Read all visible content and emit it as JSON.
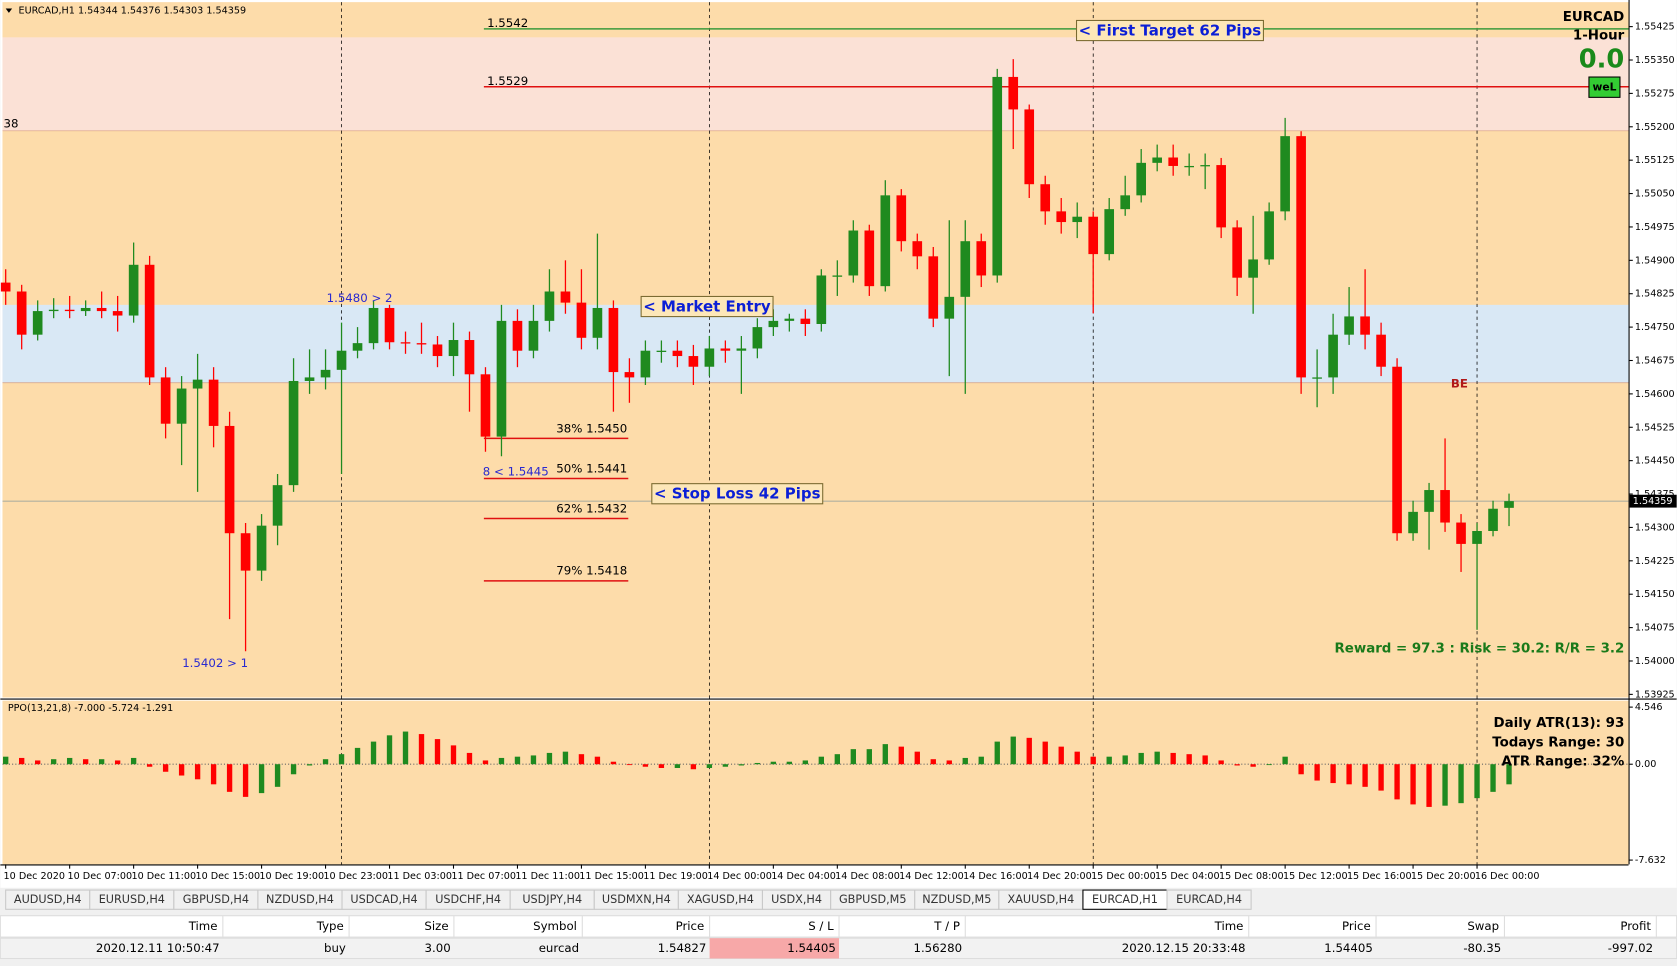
{
  "chart_data": [
    {
      "type": "candlestick",
      "header": "EURCAD,H1  1.54344 1.54376 1.54303 1.54359",
      "categories": [
        "10 Dec 2020",
        null,
        null,
        null,
        "10 Dec 07:00",
        null,
        null,
        null,
        "10 Dec 11:00",
        null,
        null,
        null,
        "10 Dec 15:00",
        null,
        null,
        null,
        "10 Dec 19:00",
        null,
        null,
        null,
        "10 Dec 23:00",
        null,
        null,
        null,
        "11 Dec 03:00",
        null,
        null,
        null,
        "11 Dec 07:00",
        null,
        null,
        null,
        "11 Dec 11:00",
        null,
        null,
        null,
        "11 Dec 15:00",
        null,
        null,
        null,
        "11 Dec 19:00",
        null,
        null,
        null,
        "14 Dec 00:00",
        null,
        null,
        null,
        "14 Dec 04:00",
        null,
        null,
        null,
        "14 Dec 08:00",
        null,
        null,
        null,
        "14 Dec 12:00",
        null,
        null,
        null,
        "14 Dec 16:00",
        null,
        null,
        null,
        "14 Dec 20:00",
        null,
        null,
        null,
        "15 Dec 00:00",
        null,
        null,
        null,
        "15 Dec 04:00",
        null,
        null,
        null,
        "15 Dec 08:00",
        null,
        null,
        null,
        "15 Dec 12:00",
        null,
        null,
        null,
        "15 Dec 16:00",
        null,
        null,
        null,
        "15 Dec 20:00",
        null,
        null,
        null,
        "16 Dec 00:00",
        null,
        null
      ],
      "open": [
        1.5485,
        1.5483,
        1.54733,
        1.54786,
        1.54789,
        1.54786,
        1.54793,
        1.54786,
        1.54776,
        1.5489,
        1.54637,
        1.54533,
        1.54612,
        1.54632,
        1.54528,
        1.54287,
        1.54203,
        1.54304,
        1.54395,
        1.54629,
        1.54637,
        1.54654,
        1.54697,
        1.54714,
        1.54793,
        1.54716,
        1.54714,
        1.54711,
        1.54685,
        1.54721,
        1.54644,
        1.54504,
        1.54764,
        1.54697,
        1.54764,
        1.5483,
        1.54805,
        1.54726,
        1.54793,
        1.54649,
        1.54637,
        1.54697,
        1.54697,
        1.54685,
        1.54661,
        1.54702,
        1.54697,
        1.54702,
        1.5475,
        1.54764,
        1.54769,
        1.54757,
        1.54866,
        1.54866,
        1.54967,
        1.54842,
        1.55046,
        1.54943,
        1.54909,
        1.54769,
        1.54818,
        1.54943,
        1.54866,
        1.55312,
        1.55239,
        1.55071,
        1.5501,
        1.54986,
        1.54998,
        1.54914,
        1.55015,
        1.55046,
        1.55119,
        1.55131,
        1.55112,
        1.55112,
        1.55114,
        1.54974,
        1.54861,
        1.54902,
        1.5501,
        1.55179,
        1.54637,
        1.54637,
        1.54733,
        1.54774,
        1.54733,
        1.54661,
        1.54287,
        1.54335,
        1.54384,
        1.54311,
        1.54263,
        1.54292,
        1.54344
      ],
      "high": [
        1.5488,
        1.54845,
        1.5481,
        1.54815,
        1.5482,
        1.5481,
        1.5483,
        1.5482,
        1.5494,
        1.5491,
        1.5466,
        1.5464,
        1.5469,
        1.5466,
        1.5456,
        1.5431,
        1.5433,
        1.5442,
        1.5468,
        1.547,
        1.547,
        1.5476,
        1.5475,
        1.5481,
        1.548,
        1.5474,
        1.5476,
        1.5473,
        1.5476,
        1.5474,
        1.5466,
        1.548,
        1.5479,
        1.548,
        1.5488,
        1.549,
        1.5488,
        1.5496,
        1.5481,
        1.5468,
        1.5472,
        1.5472,
        1.5472,
        1.5471,
        1.5473,
        1.5472,
        1.5473,
        1.5477,
        1.5479,
        1.5478,
        1.5479,
        1.5488,
        1.549,
        1.5499,
        1.5498,
        1.5508,
        1.5506,
        1.5496,
        1.5493,
        1.5499,
        1.5499,
        1.5496,
        1.5533,
        1.55352,
        1.5525,
        1.5509,
        1.5504,
        1.5503,
        1.5501,
        1.5504,
        1.5509,
        1.5515,
        1.5516,
        1.5516,
        1.5514,
        1.5514,
        1.5513,
        1.5499,
        1.55,
        1.5503,
        1.5522,
        1.5519,
        1.547,
        1.5478,
        1.5484,
        1.5488,
        1.5476,
        1.5468,
        1.5436,
        1.544,
        1.545,
        1.5433,
        1.5431,
        1.5436,
        1.54376
      ],
      "low": [
        1.548,
        1.547,
        1.5472,
        1.5477,
        1.5477,
        1.54775,
        1.5477,
        1.5474,
        1.5476,
        1.5462,
        1.545,
        1.5444,
        1.5438,
        1.5448,
        1.54094,
        1.54022,
        1.5418,
        1.5426,
        1.5438,
        1.546,
        1.5461,
        1.5442,
        1.5468,
        1.547,
        1.547,
        1.5469,
        1.5469,
        1.5466,
        1.5464,
        1.5456,
        1.5447,
        1.5446,
        1.5466,
        1.5468,
        1.5474,
        1.5478,
        1.547,
        1.547,
        1.5456,
        1.5458,
        1.5462,
        1.5467,
        1.5466,
        1.5462,
        1.5464,
        1.5467,
        1.546,
        1.5468,
        1.5473,
        1.5474,
        1.5473,
        1.5474,
        1.5482,
        1.5485,
        1.5482,
        1.5483,
        1.5492,
        1.5488,
        1.5475,
        1.5464,
        1.546,
        1.5484,
        1.5485,
        1.5515,
        1.5504,
        1.5498,
        1.5496,
        1.5495,
        1.54781,
        1.549,
        1.55,
        1.5503,
        1.551,
        1.5509,
        1.5509,
        1.5506,
        1.5495,
        1.5482,
        1.5478,
        1.5489,
        1.5499,
        1.546,
        1.5457,
        1.546,
        1.5471,
        1.547,
        1.5464,
        1.5427,
        1.5427,
        1.5425,
        1.5429,
        1.542,
        1.5407,
        1.5428,
        1.54303
      ],
      "close": [
        1.5483,
        1.54733,
        1.54786,
        1.54789,
        1.54786,
        1.54793,
        1.54786,
        1.54776,
        1.5489,
        1.54637,
        1.54533,
        1.54612,
        1.54632,
        1.54528,
        1.54287,
        1.54203,
        1.54304,
        1.54395,
        1.54629,
        1.54637,
        1.54654,
        1.54697,
        1.54714,
        1.54793,
        1.54716,
        1.54714,
        1.54711,
        1.54685,
        1.54721,
        1.54644,
        1.54504,
        1.54764,
        1.54697,
        1.54764,
        1.5483,
        1.54805,
        1.54726,
        1.54793,
        1.54649,
        1.54637,
        1.54697,
        1.54697,
        1.54685,
        1.54661,
        1.54702,
        1.54697,
        1.54702,
        1.5475,
        1.54764,
        1.54769,
        1.54757,
        1.54866,
        1.54866,
        1.54967,
        1.54842,
        1.55046,
        1.54943,
        1.54909,
        1.54769,
        1.54818,
        1.54943,
        1.54866,
        1.55312,
        1.55239,
        1.55071,
        1.5501,
        1.54986,
        1.54998,
        1.54914,
        1.55015,
        1.55046,
        1.55119,
        1.55131,
        1.55112,
        1.55112,
        1.55114,
        1.54974,
        1.54861,
        1.54902,
        1.5501,
        1.55179,
        1.54637,
        1.54637,
        1.54733,
        1.54774,
        1.54733,
        1.54661,
        1.54287,
        1.54335,
        1.54384,
        1.54311,
        1.54263,
        1.54292,
        1.54342,
        1.54359
      ],
      "up_color": "#1f8a1f",
      "down_color": "#ff0000",
      "ylim": [
        1.53918,
        1.5548
      ],
      "yticks": [
        1.55425,
        {
          "value": 1.5535,
          "label": "1.55350"
        },
        1.55275,
        {
          "value": 1.552,
          "label": "1.55200"
        },
        1.55125,
        {
          "value": 1.5505,
          "label": "1.55050"
        },
        1.54975,
        {
          "value": 1.549,
          "label": "1.54900"
        },
        1.54825,
        {
          "value": 1.5475,
          "label": "1.54750"
        },
        1.54675,
        {
          "value": 1.546,
          "label": "1.54600"
        },
        1.54525,
        {
          "value": 1.5445,
          "label": "1.54450"
        },
        1.54375,
        {
          "value": 1.543,
          "label": "1.54300"
        },
        1.54225,
        {
          "value": 1.5415,
          "label": "1.54150"
        },
        1.54075,
        {
          "value": 1.54,
          "label": "1.54000"
        },
        1.53925
      ],
      "zones": [
        {
          "from": 1.55401,
          "to": 1.55191,
          "color": "#fbe1d6"
        },
        {
          "from": 1.548,
          "to": 1.54625,
          "color": "#d9e8f5"
        }
      ],
      "levels": [
        {
          "value": 1.5542,
          "color": "#3c9a3c"
        },
        {
          "value": 1.5529,
          "color": "#e01010"
        }
      ],
      "fib": [
        {
          "label": "38% 1.5450",
          "value": 1.545
        },
        {
          "label": "50% 1.5441",
          "value": 1.5441
        },
        {
          "label": "62% 1.5432",
          "value": 1.5432
        },
        {
          "label": "79% 1.5418",
          "value": 1.5418
        }
      ],
      "fib_color": "#e01010"
    },
    {
      "type": "bar",
      "title": "PPO(13,21,8) -7.000 -5.724 -1.291",
      "values": [
        0.6,
        0.5,
        0.3,
        0.4,
        0.5,
        0.4,
        0.4,
        0.3,
        0.5,
        -0.2,
        -0.6,
        -0.9,
        -1.2,
        -1.6,
        -2.2,
        -2.6,
        -2.3,
        -1.8,
        -0.8,
        -0.1,
        0.4,
        0.8,
        1.3,
        1.8,
        2.3,
        2.6,
        2.4,
        2,
        1.5,
        0.9,
        0.3,
        0.5,
        0.6,
        0.7,
        0.9,
        1,
        0.8,
        0.6,
        0.2,
        0,
        -0.2,
        -0.3,
        -0.3,
        -0.4,
        -0.3,
        -0.2,
        -0.1,
        0.1,
        0.2,
        0.2,
        0.3,
        0.6,
        0.8,
        1.2,
        1.2,
        1.6,
        1.4,
        1,
        0.4,
        0.3,
        0.5,
        0.6,
        1.8,
        2.2,
        2.1,
        1.8,
        1.4,
        1,
        0.6,
        0.6,
        0.7,
        0.9,
        1,
        0.9,
        0.8,
        0.7,
        0.3,
        -0.1,
        -0.2,
        0,
        0.6,
        -0.8,
        -1.3,
        -1.5,
        -1.6,
        -1.8,
        -2.1,
        -2.8,
        -3.2,
        -3.4,
        -3.3,
        -3.1,
        -2.7,
        -2.2,
        -1.6
      ],
      "up_color": "#1f8a1f",
      "down_color": "#ff0000",
      "ylim": [
        -7.973,
        5.057
      ],
      "yticks": [
        4.546,
        {
          "value": 0,
          "label": "0.00"
        },
        -7.632
      ]
    }
  ],
  "annotations": {
    "first_target": "< First Target 62 Pips",
    "market_entry": "< Market Entry",
    "stop_loss": "< Stop Loss 42 Pips",
    "fractal_high": "1.5480 > 2",
    "fractal_low": "1.5402 > 1",
    "fractal_mid": "8 < 1.5445",
    "left_marker": "38",
    "be": "BE",
    "reward": "Reward = 97.3 : Risk = 30.2: R/R = 3.2"
  },
  "panel": {
    "symbol": "EURCAD",
    "timeframe": "1-Hour",
    "pips": "0.0",
    "button": "weL"
  },
  "atr_info": [
    "Daily ATR(13): 93",
    "Todays Range: 30",
    "ATR Range: 32%"
  ],
  "tabs": {
    "items": [
      "AUDUSD,H4",
      "EURUSD,H4",
      "GBPUSD,H4",
      "NZDUSD,H4",
      "USDCAD,H4",
      "USDCHF,H4",
      "USDJPY,H4",
      "USDMXN,H4",
      "XAGUSD,H4",
      "USDX,H4",
      "GBPUSD,M5",
      "NZDUSD,M5",
      "XAUUSD,H4",
      "EURCAD,H1",
      "EURCAD,H4"
    ],
    "active": "EURCAD,H1"
  },
  "trade_table": {
    "columns": [
      "Time",
      "Type",
      "Size",
      "Symbol",
      "Price",
      "S / L",
      "T / P",
      "Time",
      "Price",
      "Swap",
      "Profit"
    ],
    "rows": [
      [
        "2020.12.11 10:50:47",
        "buy",
        "3.00",
        "eurcad",
        "1.54827",
        "1.54405",
        "1.56280",
        "2020.12.15 20:33:48",
        "1.54405",
        "-80.35",
        "-997.02"
      ]
    ]
  }
}
